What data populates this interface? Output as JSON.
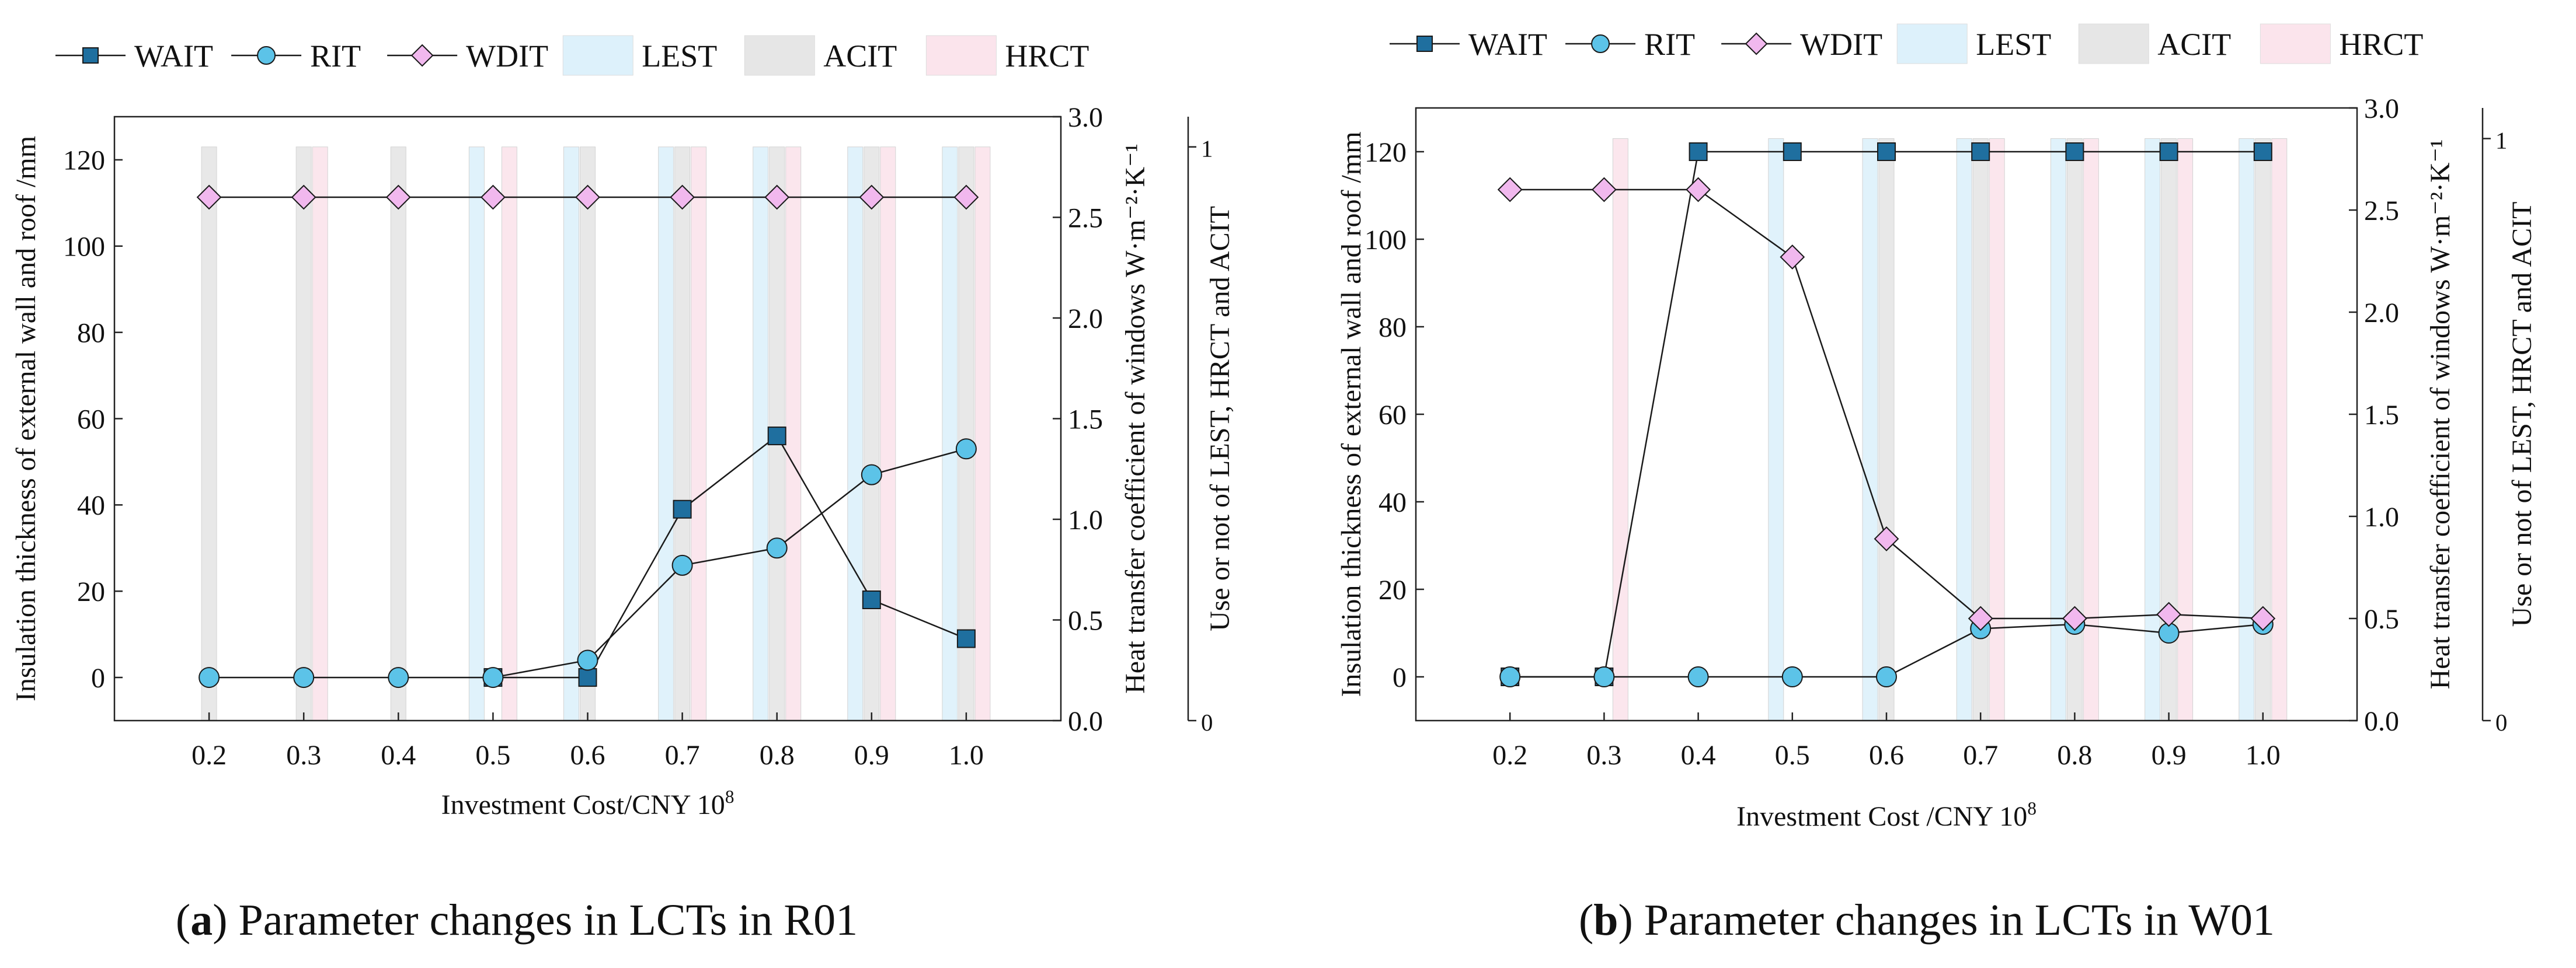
{
  "legend": {
    "WAIT": "WAIT",
    "RIT": "RIT",
    "WDIT": "WDIT",
    "LEST": "LEST",
    "ACIT": "ACIT",
    "HRCT": "HRCT"
  },
  "colors": {
    "WAIT": "#1f6f9f",
    "RIT": "#5cc3e8",
    "WDIT": "#f1b8ee",
    "LEST": "#ddf1fb",
    "ACIT": "#e6e6e6",
    "HRCT": "#fbe4ec",
    "axis": "#222222"
  },
  "chart_data": [
    {
      "type": "line",
      "panel_id": "a",
      "caption_letter": "a",
      "caption_text": ") Parameter changes in LCTs in R01",
      "xlabel": "Investment Cost/CNY 10",
      "xlabel_sup": "8",
      "ylabel_left": "Insulation thickness of external wall and roof /mm",
      "ylabel_right1": "Heat transfer coefficient of windows W·m⁻²·K⁻¹",
      "ylabel_right2": "Use or not of LEST, HRCT and ACIT",
      "x": [
        0.2,
        0.3,
        0.4,
        0.5,
        0.6,
        0.7,
        0.8,
        0.9,
        1.0
      ],
      "x_tick_labels": [
        "0.2",
        "0.3",
        "0.4",
        "0.5",
        "0.6",
        "0.7",
        "0.8",
        "0.9",
        "1.0"
      ],
      "xlim": [
        0.1,
        1.1
      ],
      "ylim_left": [
        -10,
        130
      ],
      "y_left_ticks": [
        0,
        20,
        40,
        60,
        80,
        100,
        120
      ],
      "ylim_right1": [
        0,
        3.0
      ],
      "y_right1_ticks": [
        0,
        0.5,
        1.0,
        1.5,
        2.0,
        2.5,
        3.0
      ],
      "y_right1_tick_labels": [
        "0.0",
        "0.5",
        "1.0",
        "1.5",
        "2.0",
        "2.5",
        "3.0"
      ],
      "ylim_right2": [
        0,
        1
      ],
      "y_right2_tick_labels": [
        "0",
        "1"
      ],
      "series": [
        {
          "name": "WAIT",
          "axis": "left",
          "marker": "square",
          "values": [
            null,
            null,
            null,
            0,
            0,
            39,
            56,
            18,
            9
          ]
        },
        {
          "name": "RIT",
          "axis": "left",
          "marker": "circle",
          "values": [
            0,
            0,
            0,
            0,
            4,
            26,
            30,
            47,
            53
          ]
        },
        {
          "name": "WDIT",
          "axis": "right1",
          "marker": "diamond",
          "values": [
            2.6,
            2.6,
            2.6,
            2.6,
            2.6,
            2.6,
            2.6,
            2.6,
            2.6
          ]
        }
      ],
      "bars": [
        {
          "name": "LEST",
          "values": [
            0,
            0,
            0,
            1,
            1,
            1,
            1,
            1,
            1
          ]
        },
        {
          "name": "ACIT",
          "values": [
            1,
            1,
            1,
            0,
            1,
            1,
            1,
            1,
            1
          ]
        },
        {
          "name": "HRCT",
          "values": [
            0,
            1,
            0,
            1,
            0,
            1,
            1,
            1,
            1
          ]
        }
      ]
    },
    {
      "type": "line",
      "panel_id": "b",
      "caption_letter": "b",
      "caption_text": ") Parameter changes in LCTs in W01",
      "xlabel": "Investment Cost /CNY 10",
      "xlabel_sup": "8",
      "ylabel_left": "Insulation thickness of external wall and roof /mm",
      "ylabel_right1": "Heat transfer coefficient of windows W·m⁻²·K⁻¹",
      "ylabel_right2": "Use or not of LEST, HRCT and ACIT",
      "x": [
        0.2,
        0.3,
        0.4,
        0.5,
        0.6,
        0.7,
        0.8,
        0.9,
        1.0
      ],
      "x_tick_labels": [
        "0.2",
        "0.3",
        "0.4",
        "0.5",
        "0.6",
        "0.7",
        "0.8",
        "0.9",
        "1.0"
      ],
      "xlim": [
        0.1,
        1.1
      ],
      "ylim_left": [
        -10,
        130
      ],
      "y_left_ticks": [
        0,
        20,
        40,
        60,
        80,
        100,
        120
      ],
      "ylim_right1": [
        0,
        3.0
      ],
      "y_right1_ticks": [
        0,
        0.5,
        1.0,
        1.5,
        2.0,
        2.5,
        3.0
      ],
      "y_right1_tick_labels": [
        "0.0",
        "0.5",
        "1.0",
        "1.5",
        "2.0",
        "2.5",
        "3.0"
      ],
      "ylim_right2": [
        0,
        1
      ],
      "y_right2_tick_labels": [
        "0",
        "1"
      ],
      "series": [
        {
          "name": "WAIT",
          "axis": "left",
          "marker": "square",
          "values": [
            0,
            0,
            120,
            120,
            120,
            120,
            120,
            120,
            120
          ]
        },
        {
          "name": "RIT",
          "axis": "left",
          "marker": "circle",
          "values": [
            0,
            0,
            0,
            0,
            0,
            11,
            12,
            10,
            12
          ]
        },
        {
          "name": "WDIT",
          "axis": "right1",
          "marker": "diamond",
          "values": [
            2.6,
            2.6,
            2.6,
            2.27,
            0.89,
            0.5,
            0.5,
            0.52,
            0.5
          ]
        }
      ],
      "bars": [
        {
          "name": "LEST",
          "values": [
            0,
            0,
            0,
            1,
            1,
            1,
            1,
            1,
            1
          ]
        },
        {
          "name": "ACIT",
          "values": [
            0,
            0,
            0,
            0,
            1,
            1,
            1,
            1,
            1
          ]
        },
        {
          "name": "HRCT",
          "values": [
            0,
            1,
            0,
            0,
            0,
            1,
            1,
            1,
            1
          ]
        }
      ]
    }
  ]
}
